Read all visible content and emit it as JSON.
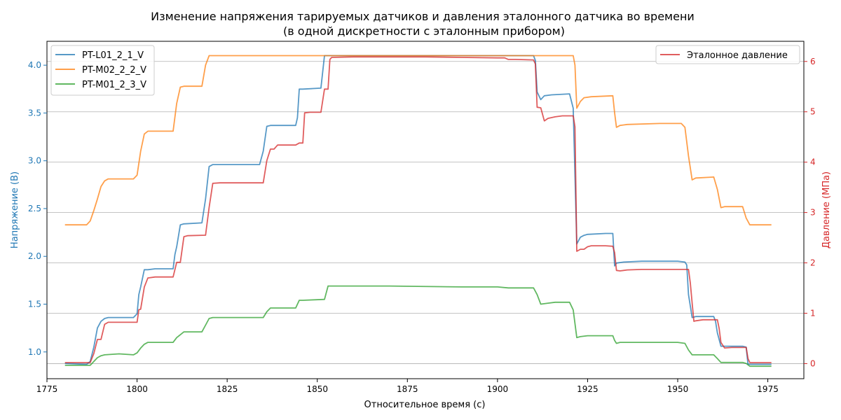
{
  "chart_data": {
    "type": "line",
    "title_line1": "Изменение напряжения тарируемых датчиков и давления эталонного датчика во времени",
    "title_line2": "(в одной дискретности с эталонным прибором)",
    "xlabel": "Относительное время (с)",
    "ylabel_left": "Напряжение (В)",
    "ylabel_right": "Давление (МПа)",
    "xlim": [
      1775,
      1985
    ],
    "ylim_left": [
      0.72,
      4.25
    ],
    "ylim_right": [
      -0.3,
      6.4
    ],
    "x_ticks": [
      "1775",
      "1800",
      "1825",
      "1850",
      "1875",
      "1900",
      "1925",
      "1950",
      "1975"
    ],
    "y_left_ticks": [
      "1.0",
      "1.5",
      "2.0",
      "2.5",
      "3.0",
      "3.5",
      "4.0"
    ],
    "y_right_ticks": [
      "0",
      "1",
      "2",
      "3",
      "4",
      "5",
      "6"
    ],
    "grid": "horizontal-right-axis",
    "legend_left_position": "upper-left",
    "legend_right_position": "upper-right",
    "left_axis_color": "#1f77b4",
    "right_axis_color": "#d62728",
    "series_left": [
      {
        "name": "PT-L01_2_1_V",
        "color": "#1f77b4",
        "points": [
          [
            1780,
            0.88
          ],
          [
            1786,
            0.87
          ],
          [
            1787,
            0.9
          ],
          [
            1788,
            1.05
          ],
          [
            1789,
            1.25
          ],
          [
            1790,
            1.32
          ],
          [
            1791,
            1.35
          ],
          [
            1792,
            1.36
          ],
          [
            1799,
            1.36
          ],
          [
            1800,
            1.4
          ],
          [
            1800.5,
            1.6
          ],
          [
            1801,
            1.68
          ],
          [
            1802,
            1.86
          ],
          [
            1803,
            1.86
          ],
          [
            1805,
            1.87
          ],
          [
            1810,
            1.87
          ],
          [
            1810.5,
            2.02
          ],
          [
            1811,
            2.1
          ],
          [
            1812,
            2.33
          ],
          [
            1813,
            2.34
          ],
          [
            1818,
            2.35
          ],
          [
            1819,
            2.6
          ],
          [
            1820,
            2.94
          ],
          [
            1821,
            2.96
          ],
          [
            1828,
            2.96
          ],
          [
            1834,
            2.96
          ],
          [
            1835,
            3.1
          ],
          [
            1836,
            3.36
          ],
          [
            1837,
            3.37
          ],
          [
            1844,
            3.37
          ],
          [
            1844.5,
            3.45
          ],
          [
            1845,
            3.75
          ],
          [
            1846,
            3.75
          ],
          [
            1851,
            3.76
          ],
          [
            1852,
            4.1
          ],
          [
            1856,
            4.1
          ],
          [
            1862,
            4.1
          ],
          [
            1880,
            4.1
          ],
          [
            1900,
            4.1
          ],
          [
            1910,
            4.1
          ],
          [
            1910.5,
            4.05
          ],
          [
            1911,
            3.72
          ],
          [
            1912,
            3.64
          ],
          [
            1913,
            3.68
          ],
          [
            1915,
            3.69
          ],
          [
            1920,
            3.7
          ],
          [
            1921,
            3.55
          ],
          [
            1922,
            2.13
          ],
          [
            1923,
            2.2
          ],
          [
            1924,
            2.22
          ],
          [
            1925,
            2.23
          ],
          [
            1930,
            2.24
          ],
          [
            1932,
            2.24
          ],
          [
            1932.5,
            1.9
          ],
          [
            1933,
            1.93
          ],
          [
            1935,
            1.94
          ],
          [
            1940,
            1.95
          ],
          [
            1950,
            1.95
          ],
          [
            1952,
            1.94
          ],
          [
            1952.5,
            1.91
          ],
          [
            1953,
            1.6
          ],
          [
            1954,
            1.36
          ],
          [
            1955,
            1.37
          ],
          [
            1960,
            1.37
          ],
          [
            1960.5,
            1.32
          ],
          [
            1961,
            1.2
          ],
          [
            1962,
            1.06
          ],
          [
            1965,
            1.06
          ],
          [
            1968,
            1.06
          ],
          [
            1969,
            1.05
          ],
          [
            1969.5,
            0.87
          ],
          [
            1972,
            0.87
          ],
          [
            1976,
            0.87
          ]
        ]
      },
      {
        "name": "PT-M02_2_2_V",
        "color": "#ff7f0e",
        "points": [
          [
            1780,
            2.33
          ],
          [
            1786,
            2.33
          ],
          [
            1787,
            2.37
          ],
          [
            1788,
            2.48
          ],
          [
            1789,
            2.6
          ],
          [
            1790,
            2.73
          ],
          [
            1791,
            2.79
          ],
          [
            1792,
            2.81
          ],
          [
            1795,
            2.81
          ],
          [
            1799,
            2.81
          ],
          [
            1800,
            2.85
          ],
          [
            1801,
            3.1
          ],
          [
            1802,
            3.28
          ],
          [
            1803,
            3.31
          ],
          [
            1806,
            3.31
          ],
          [
            1810,
            3.31
          ],
          [
            1811,
            3.6
          ],
          [
            1812,
            3.77
          ],
          [
            1813,
            3.78
          ],
          [
            1818,
            3.78
          ],
          [
            1819,
            4.0
          ],
          [
            1820,
            4.1
          ],
          [
            1825,
            4.1
          ],
          [
            1850,
            4.1
          ],
          [
            1900,
            4.1
          ],
          [
            1921,
            4.1
          ],
          [
            1921.5,
            4.0
          ],
          [
            1922,
            3.55
          ],
          [
            1923,
            3.62
          ],
          [
            1924,
            3.66
          ],
          [
            1926,
            3.67
          ],
          [
            1932,
            3.68
          ],
          [
            1932.5,
            3.5
          ],
          [
            1933,
            3.35
          ],
          [
            1934,
            3.37
          ],
          [
            1936,
            3.38
          ],
          [
            1945,
            3.39
          ],
          [
            1951,
            3.39
          ],
          [
            1952,
            3.35
          ],
          [
            1953,
            3.05
          ],
          [
            1954,
            2.8
          ],
          [
            1955,
            2.82
          ],
          [
            1960,
            2.83
          ],
          [
            1961,
            2.7
          ],
          [
            1962,
            2.51
          ],
          [
            1963,
            2.52
          ],
          [
            1968,
            2.52
          ],
          [
            1969,
            2.4
          ],
          [
            1970,
            2.33
          ],
          [
            1976,
            2.33
          ]
        ]
      },
      {
        "name": "PT-M01_2_3_V",
        "color": "#2ca02c",
        "points": [
          [
            1780,
            0.86
          ],
          [
            1787,
            0.86
          ],
          [
            1788,
            0.9
          ],
          [
            1789,
            0.94
          ],
          [
            1790,
            0.96
          ],
          [
            1791,
            0.97
          ],
          [
            1795,
            0.98
          ],
          [
            1799,
            0.97
          ],
          [
            1800,
            0.99
          ],
          [
            1801,
            1.04
          ],
          [
            1802,
            1.08
          ],
          [
            1803,
            1.1
          ],
          [
            1806,
            1.1
          ],
          [
            1810,
            1.1
          ],
          [
            1811,
            1.15
          ],
          [
            1812,
            1.18
          ],
          [
            1813,
            1.21
          ],
          [
            1818,
            1.21
          ],
          [
            1819,
            1.28
          ],
          [
            1820,
            1.35
          ],
          [
            1821,
            1.36
          ],
          [
            1828,
            1.36
          ],
          [
            1835,
            1.36
          ],
          [
            1836,
            1.42
          ],
          [
            1837,
            1.46
          ],
          [
            1844,
            1.46
          ],
          [
            1845,
            1.54
          ],
          [
            1846,
            1.54
          ],
          [
            1852,
            1.55
          ],
          [
            1853,
            1.69
          ],
          [
            1854,
            1.69
          ],
          [
            1870,
            1.69
          ],
          [
            1890,
            1.68
          ],
          [
            1900,
            1.68
          ],
          [
            1903,
            1.67
          ],
          [
            1910,
            1.67
          ],
          [
            1911,
            1.6
          ],
          [
            1912,
            1.5
          ],
          [
            1914,
            1.51
          ],
          [
            1916,
            1.52
          ],
          [
            1920,
            1.52
          ],
          [
            1921,
            1.44
          ],
          [
            1922,
            1.15
          ],
          [
            1923,
            1.16
          ],
          [
            1925,
            1.17
          ],
          [
            1930,
            1.17
          ],
          [
            1932,
            1.17
          ],
          [
            1932.5,
            1.12
          ],
          [
            1933,
            1.09
          ],
          [
            1934,
            1.1
          ],
          [
            1940,
            1.1
          ],
          [
            1950,
            1.1
          ],
          [
            1952,
            1.09
          ],
          [
            1953,
            1.02
          ],
          [
            1954,
            0.97
          ],
          [
            1955,
            0.97
          ],
          [
            1960,
            0.97
          ],
          [
            1961,
            0.93
          ],
          [
            1962,
            0.89
          ],
          [
            1963,
            0.89
          ],
          [
            1968,
            0.89
          ],
          [
            1969,
            0.88
          ],
          [
            1970,
            0.85
          ],
          [
            1976,
            0.85
          ]
        ]
      }
    ],
    "series_right": [
      {
        "name": "Эталонное давление",
        "color": "#d62728",
        "points": [
          [
            1780,
            0.02
          ],
          [
            1787,
            0.02
          ],
          [
            1788,
            0.2
          ],
          [
            1789,
            0.48
          ],
          [
            1790,
            0.48
          ],
          [
            1791,
            0.78
          ],
          [
            1792,
            0.82
          ],
          [
            1795,
            0.82
          ],
          [
            1800,
            0.82
          ],
          [
            1800.5,
            1.07
          ],
          [
            1801,
            1.08
          ],
          [
            1802,
            1.52
          ],
          [
            1803,
            1.7
          ],
          [
            1805,
            1.72
          ],
          [
            1810,
            1.72
          ],
          [
            1811,
            2.01
          ],
          [
            1812,
            2.01
          ],
          [
            1813,
            2.52
          ],
          [
            1814,
            2.54
          ],
          [
            1819,
            2.55
          ],
          [
            1820,
            3.1
          ],
          [
            1821,
            3.58
          ],
          [
            1823,
            3.59
          ],
          [
            1835,
            3.59
          ],
          [
            1836,
            4.03
          ],
          [
            1837,
            4.26
          ],
          [
            1838,
            4.26
          ],
          [
            1839,
            4.34
          ],
          [
            1844,
            4.34
          ],
          [
            1845,
            4.38
          ],
          [
            1846,
            4.38
          ],
          [
            1846.5,
            4.98
          ],
          [
            1848,
            4.99
          ],
          [
            1851,
            4.99
          ],
          [
            1852,
            5.45
          ],
          [
            1853,
            5.45
          ],
          [
            1853.5,
            6.04
          ],
          [
            1854,
            6.08
          ],
          [
            1860,
            6.09
          ],
          [
            1870,
            6.09
          ],
          [
            1880,
            6.09
          ],
          [
            1890,
            6.08
          ],
          [
            1900,
            6.07
          ],
          [
            1902,
            6.07
          ],
          [
            1903,
            6.04
          ],
          [
            1905,
            6.04
          ],
          [
            1910,
            6.03
          ],
          [
            1910.5,
            5.95
          ],
          [
            1911,
            5.09
          ],
          [
            1912,
            5.08
          ],
          [
            1913,
            4.82
          ],
          [
            1914,
            4.87
          ],
          [
            1916,
            4.9
          ],
          [
            1918,
            4.92
          ],
          [
            1921,
            4.92
          ],
          [
            1921.5,
            4.7
          ],
          [
            1922,
            2.23
          ],
          [
            1923,
            2.27
          ],
          [
            1924,
            2.27
          ],
          [
            1925,
            2.32
          ],
          [
            1926,
            2.34
          ],
          [
            1930,
            2.34
          ],
          [
            1932,
            2.33
          ],
          [
            1932.5,
            2.2
          ],
          [
            1933,
            1.85
          ],
          [
            1934,
            1.84
          ],
          [
            1936,
            1.86
          ],
          [
            1940,
            1.87
          ],
          [
            1948,
            1.87
          ],
          [
            1953,
            1.87
          ],
          [
            1953.5,
            1.6
          ],
          [
            1954,
            1.2
          ],
          [
            1954.5,
            0.84
          ],
          [
            1955,
            0.85
          ],
          [
            1957,
            0.87
          ],
          [
            1961,
            0.87
          ],
          [
            1961.5,
            0.7
          ],
          [
            1962,
            0.42
          ],
          [
            1963,
            0.31
          ],
          [
            1965,
            0.32
          ],
          [
            1969,
            0.32
          ],
          [
            1969.5,
            0.1
          ],
          [
            1970,
            0.02
          ],
          [
            1976,
            0.02
          ]
        ]
      }
    ]
  }
}
